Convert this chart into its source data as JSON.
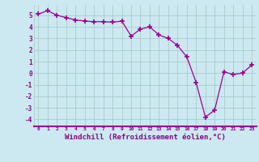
{
  "x": [
    0,
    1,
    2,
    3,
    4,
    5,
    6,
    7,
    8,
    9,
    10,
    11,
    12,
    13,
    14,
    15,
    16,
    17,
    18,
    19,
    20,
    21,
    22,
    23
  ],
  "y": [
    5.1,
    5.4,
    5.0,
    4.8,
    4.6,
    4.5,
    4.45,
    4.45,
    4.4,
    4.5,
    3.2,
    3.8,
    4.0,
    3.3,
    3.0,
    2.4,
    1.4,
    -0.8,
    -3.8,
    -3.2,
    0.1,
    -0.1,
    0.0,
    0.7
  ],
  "line_color": "#990099",
  "marker": "+",
  "markersize": 4,
  "linewidth": 0.9,
  "xlabel": "Windchill (Refroidissement éolien,°C)",
  "xlabel_fontsize": 6.5,
  "xtick_labels": [
    "0",
    "1",
    "2",
    "3",
    "4",
    "5",
    "6",
    "7",
    "8",
    "9",
    "10",
    "11",
    "12",
    "13",
    "14",
    "15",
    "16",
    "17",
    "18",
    "19",
    "20",
    "21",
    "22",
    "23"
  ],
  "yticks": [
    -4,
    -3,
    -2,
    -1,
    0,
    1,
    2,
    3,
    4,
    5
  ],
  "ylim": [
    -4.6,
    5.9
  ],
  "xlim": [
    -0.5,
    23.5
  ],
  "bg_color": "#cce8f0",
  "grid_color": "#aacccc",
  "tick_color": "#880088",
  "label_color": "#880088"
}
